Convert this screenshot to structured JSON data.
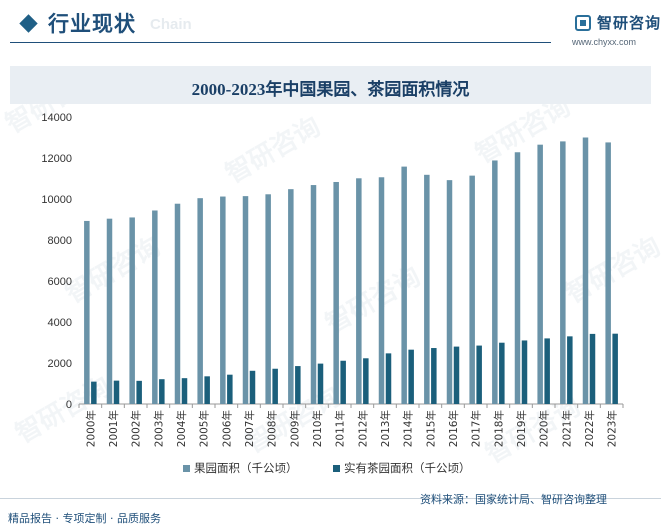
{
  "header": {
    "title": "行业现状",
    "background_word": "Chain",
    "logo_text": "智研咨询",
    "logo_url": "www.chyxx.com"
  },
  "footer": {
    "left": "精品报告 · 专项定制 · 品质服务",
    "source": "资料来源：国家统计局、智研咨询整理"
  },
  "watermark": "智研咨询",
  "chart_data": {
    "type": "bar",
    "title": "2000-2023年中国果园、茶园面积情况",
    "categories": [
      "2000年",
      "2001年",
      "2002年",
      "2003年",
      "2004年",
      "2005年",
      "2006年",
      "2007年",
      "2008年",
      "2009年",
      "2010年",
      "2011年",
      "2012年",
      "2013年",
      "2014年",
      "2015年",
      "2016年",
      "2017年",
      "2018年",
      "2019年",
      "2020年",
      "2021年",
      "2022年",
      "2023年"
    ],
    "series": [
      {
        "name": "果园面积（千公顷）",
        "color": "#6a93a8",
        "values": [
          8930,
          9040,
          9100,
          9440,
          9770,
          10040,
          10120,
          10140,
          10230,
          10480,
          10680,
          10830,
          11010,
          11060,
          11580,
          11180,
          10920,
          11140,
          11880,
          12280,
          12650,
          12810,
          13000,
          12760
        ]
      },
      {
        "name": "实有茶园面积（千公顷）",
        "color": "#1b5f7b",
        "values": [
          1090,
          1140,
          1130,
          1210,
          1260,
          1350,
          1430,
          1620,
          1720,
          1850,
          1970,
          2110,
          2230,
          2470,
          2650,
          2730,
          2800,
          2850,
          2990,
          3100,
          3200,
          3300,
          3420,
          3430
        ]
      }
    ],
    "ylim": [
      0,
      14000
    ],
    "yticks": [
      0,
      2000,
      4000,
      6000,
      8000,
      10000,
      12000,
      14000
    ],
    "xlabel": "",
    "ylabel": "",
    "legend_position": "bottom-center",
    "grid": false
  }
}
